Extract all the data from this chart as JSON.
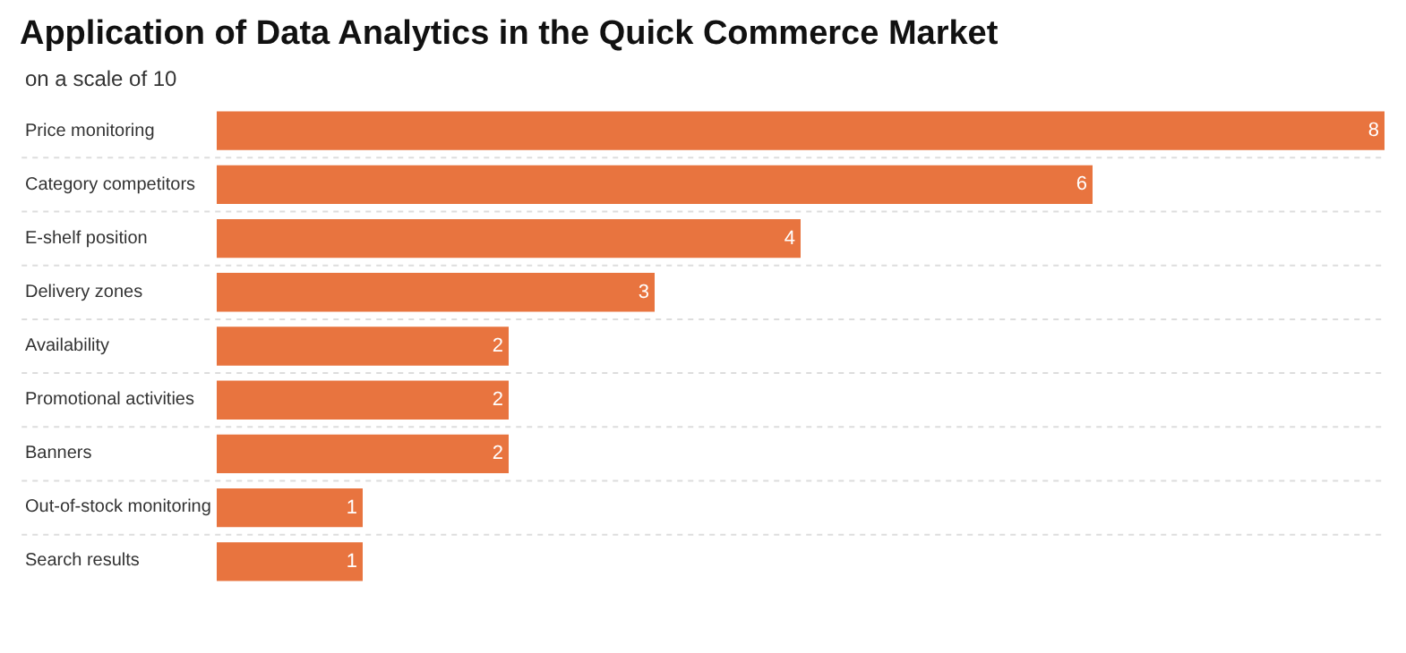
{
  "chart_data": {
    "type": "bar",
    "orientation": "horizontal",
    "title": "Application of Data Analytics in the Quick Commerce Market",
    "subtitle": "on a scale of 10",
    "categories": [
      "Price monitoring",
      "Category competitors",
      "E-shelf position",
      "Delivery zones",
      "Availability",
      "Promotional activities",
      "Banners",
      "Out-of-stock monitoring",
      "Search results"
    ],
    "values": [
      8,
      6,
      4,
      3,
      2,
      2,
      2,
      1,
      1
    ],
    "color": "#e8743f",
    "data_labels": true,
    "legend": false
  }
}
